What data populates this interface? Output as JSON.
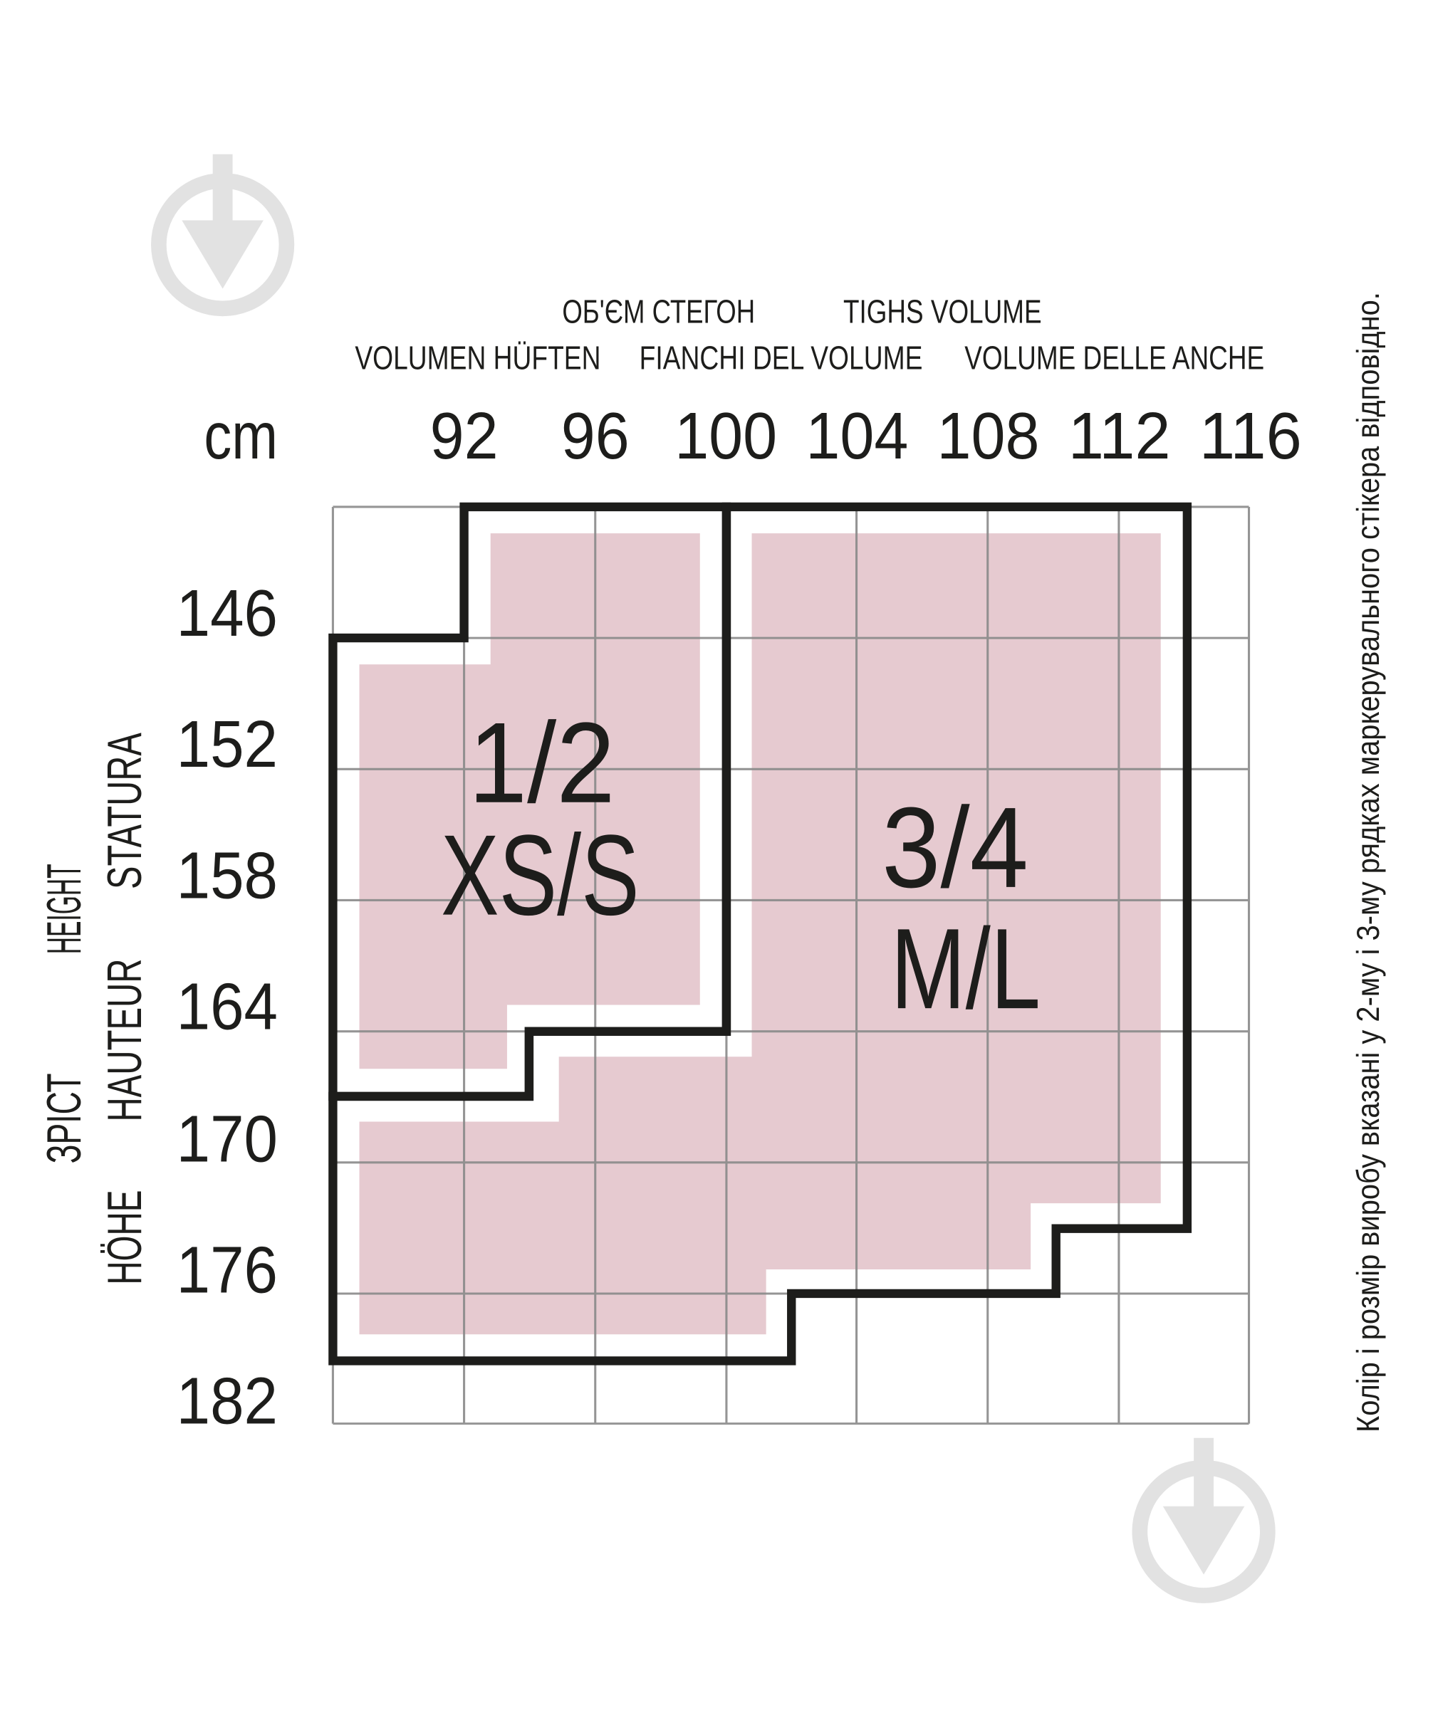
{
  "header": {
    "ua": "ОБ'ЄМ СТЕГОН",
    "en": "TIGHS VOLUME",
    "de": "VOLUMEN HÜFTEN",
    "fr": "FIANCHI DEL VOLUME",
    "it": "VOLUME DELLE ANCHE"
  },
  "unit": "cm",
  "hip_values": [
    "92",
    "96",
    "100",
    "104",
    "108",
    "112",
    "116"
  ],
  "height_values": [
    "146",
    "152",
    "158",
    "164",
    "170",
    "176",
    "182"
  ],
  "height_labels": {
    "ua": "ЗРІСТ",
    "en": "HEIGHT",
    "de": "HÖHE",
    "fr": "HAUTEUR",
    "it": "STATURA"
  },
  "sizes": [
    {
      "number": "1/2",
      "name": "XS/S"
    },
    {
      "number": "3/4",
      "name": "M/L"
    }
  ],
  "note": "Колір і розмір виробу вказані у 2-му і 3-му рядках маркерувального стікера відповідно.",
  "colors": {
    "fill": "#e6cad0",
    "outline": "#1d1d1b",
    "grid": "#8a8a8a",
    "watermark": "#e2e2e2"
  }
}
